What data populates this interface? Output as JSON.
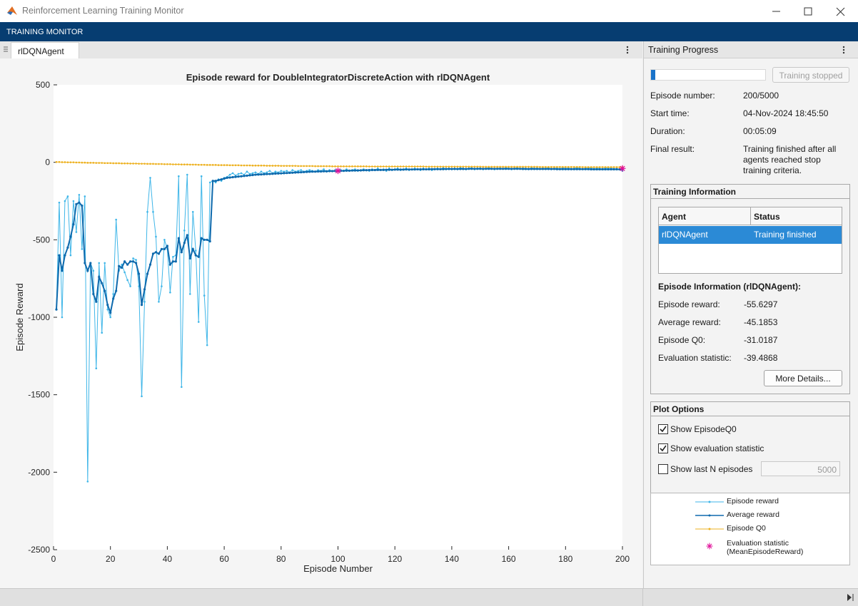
{
  "window": {
    "title": "Reinforcement Learning Training Monitor",
    "toolbar_title": "TRAINING MONITOR",
    "tab": "rlDQNAgent"
  },
  "progress": {
    "title": "Training Progress",
    "progress_bar": {
      "value": 200,
      "max": 5000
    },
    "button": "Training stopped",
    "fields": [
      {
        "label": "Episode number:",
        "value": "200/5000"
      },
      {
        "label": "Start time:",
        "value": "04-Nov-2024 18:45:50"
      },
      {
        "label": "Duration:",
        "value": "00:05:09"
      },
      {
        "label": "Final result:",
        "value": "Training finished after all agents reached stop training criteria."
      }
    ]
  },
  "training_info": {
    "title": "Training Information",
    "table": {
      "header": [
        "Agent",
        "Status"
      ],
      "rows": [
        [
          "rlDQNAgent",
          "Training finished"
        ]
      ]
    },
    "episode_info_title": "Episode Information (rlDQNAgent):",
    "fields": [
      {
        "label": "Episode reward:",
        "value": "-55.6297"
      },
      {
        "label": "Average reward:",
        "value": "-45.1853"
      },
      {
        "label": "Episode Q0:",
        "value": "-31.0187"
      },
      {
        "label": "Evaluation statistic:",
        "value": "-39.4868"
      }
    ],
    "button": "More Details..."
  },
  "plot_options": {
    "title": "Plot Options",
    "options": [
      {
        "label": "Show EpisodeQ0",
        "checked": true
      },
      {
        "label": "Show evaluation statistic",
        "checked": true
      },
      {
        "label": "Show last N episodes",
        "checked": false
      }
    ],
    "last_n_value": "5000"
  },
  "chart_data": {
    "type": "line",
    "title": "Episode reward for DoubleIntegratorDiscreteAction with rlDQNAgent",
    "x_label": "Episode Number",
    "y_label": "Episode Reward",
    "xlim": [
      0,
      200
    ],
    "xticks": [
      0,
      20,
      40,
      60,
      80,
      100,
      120,
      140,
      160,
      180,
      200
    ],
    "ylim": [
      -2500,
      500
    ],
    "yticks": [
      500,
      0,
      -500,
      -1000,
      -1500,
      -2000,
      -2500
    ],
    "grid": false,
    "x": [
      1,
      2,
      3,
      4,
      5,
      6,
      7,
      8,
      9,
      10,
      11,
      12,
      13,
      14,
      15,
      16,
      17,
      18,
      19,
      20,
      21,
      22,
      23,
      24,
      25,
      26,
      27,
      28,
      29,
      30,
      31,
      32,
      33,
      34,
      35,
      36,
      37,
      38,
      39,
      40,
      41,
      42,
      43,
      44,
      45,
      46,
      47,
      48,
      49,
      50,
      51,
      52,
      53,
      54,
      55,
      56,
      57,
      58,
      59,
      60,
      61,
      62,
      63,
      64,
      65,
      66,
      67,
      68,
      69,
      70,
      71,
      72,
      73,
      74,
      75,
      76,
      77,
      78,
      79,
      80,
      81,
      82,
      83,
      84,
      85,
      86,
      87,
      88,
      89,
      90,
      91,
      92,
      93,
      94,
      95,
      96,
      97,
      98,
      99,
      100,
      101,
      102,
      103,
      104,
      105,
      106,
      107,
      108,
      109,
      110,
      111,
      112,
      113,
      114,
      115,
      116,
      117,
      118,
      119,
      120,
      121,
      122,
      123,
      124,
      125,
      126,
      127,
      128,
      129,
      130,
      131,
      132,
      133,
      134,
      135,
      136,
      137,
      138,
      139,
      140,
      141,
      142,
      143,
      144,
      145,
      146,
      147,
      148,
      149,
      150,
      151,
      152,
      153,
      154,
      155,
      156,
      157,
      158,
      159,
      160,
      161,
      162,
      163,
      164,
      165,
      166,
      167,
      168,
      169,
      170,
      171,
      172,
      173,
      174,
      175,
      176,
      177,
      178,
      179,
      180,
      181,
      182,
      183,
      184,
      185,
      186,
      187,
      188,
      189,
      190,
      191,
      192,
      193,
      194,
      195,
      196,
      197,
      198,
      199,
      200
    ],
    "series": [
      {
        "name": "Episode reward",
        "color": "#3fb6e8",
        "marker": "dot",
        "values": [
          -950,
          -260,
          -1000,
          -250,
          -220,
          -600,
          -250,
          -450,
          -210,
          -560,
          -220,
          -2060,
          -650,
          -700,
          -1330,
          -650,
          -1100,
          -650,
          -950,
          -1000,
          -850,
          -370,
          -700,
          -660,
          -710,
          -760,
          -800,
          -620,
          -630,
          -800,
          -1510,
          -900,
          -320,
          -100,
          -320,
          -480,
          -900,
          -800,
          -500,
          -560,
          -840,
          -610,
          -600,
          -90,
          -1450,
          -440,
          -80,
          -850,
          -320,
          -570,
          -1030,
          -90,
          -860,
          -1180,
          -130,
          -120,
          -130,
          -110,
          -120,
          -100,
          -95,
          -80,
          -70,
          -85,
          -75,
          -70,
          -80,
          -60,
          -75,
          -70,
          -65,
          -75,
          -60,
          -70,
          -65,
          -55,
          -70,
          -60,
          -65,
          -55,
          -60,
          -55,
          -65,
          -50,
          -60,
          -55,
          -50,
          -60,
          -55,
          -50,
          -55,
          -60,
          -50,
          -55,
          -45,
          -60,
          -50,
          -55,
          -50,
          -56,
          -50,
          -55,
          -45,
          -55,
          -50,
          -45,
          -55,
          -50,
          -45,
          -50,
          -55,
          -45,
          -50,
          -40,
          -50,
          -45,
          -55,
          -40,
          -50,
          -45,
          -40,
          -50,
          -45,
          -40,
          -50,
          -45,
          -40,
          -45,
          -50,
          -40,
          -45,
          -40,
          -50,
          -45,
          -40,
          -45,
          -35,
          -45,
          -40,
          -45,
          -40,
          -45,
          -35,
          -40,
          -45,
          -40,
          -35,
          -45,
          -40,
          -38,
          -45,
          -40,
          -35,
          -40,
          -45,
          -40,
          -38,
          -42,
          -35,
          -40,
          -45,
          -40,
          -35,
          -42,
          -38,
          -40,
          -45,
          -35,
          -40,
          -38,
          -42,
          -38,
          -40,
          -35,
          -45,
          -40,
          -38,
          -42,
          -36,
          -40,
          -38,
          -42,
          -40,
          -35,
          -40,
          -44,
          -38,
          -40,
          -36,
          -42,
          -38,
          -40,
          -42,
          -36,
          -40,
          -38,
          -42,
          -40,
          -45,
          -55.6297
        ]
      },
      {
        "name": "Average reward",
        "color": "#0e6aad",
        "marker": "dot",
        "values": [
          -950,
          -600,
          -700,
          -600,
          -550,
          -480,
          -400,
          -270,
          -260,
          -280,
          -650,
          -700,
          -650,
          -850,
          -900,
          -740,
          -780,
          -830,
          -920,
          -970,
          -880,
          -830,
          -670,
          -680,
          -640,
          -660,
          -640,
          -640,
          -650,
          -720,
          -920,
          -820,
          -720,
          -660,
          -590,
          -580,
          -590,
          -560,
          -560,
          -540,
          -660,
          -640,
          -640,
          -490,
          -580,
          -520,
          -470,
          -620,
          -560,
          -600,
          -610,
          -490,
          -500,
          -500,
          -510,
          -120,
          -120,
          -115,
          -110,
          -105,
          -100,
          -98,
          -96,
          -94,
          -92,
          -90,
          -88,
          -86,
          -84,
          -82,
          -80,
          -79,
          -78,
          -77,
          -76,
          -75,
          -74,
          -73,
          -72,
          -71,
          -70,
          -69,
          -68,
          -67,
          -66,
          -65,
          -64,
          -63,
          -62,
          -61,
          -60,
          -60,
          -59,
          -59,
          -58,
          -58,
          -57,
          -57,
          -56,
          -56,
          -55,
          -55,
          -54,
          -54,
          -53,
          -53,
          -52,
          -52,
          -51,
          -51,
          -50,
          -50,
          -50,
          -49,
          -49,
          -49,
          -48,
          -48,
          -48,
          -47,
          -47,
          -47,
          -47,
          -46,
          -46,
          -46,
          -46,
          -45,
          -45,
          -45,
          -45,
          -45,
          -44,
          -44,
          -44,
          -44,
          -44,
          -43,
          -43,
          -43,
          -43,
          -43,
          -43,
          -43,
          -43,
          -42,
          -42,
          -42,
          -42,
          -42,
          -42,
          -42,
          -42,
          -42,
          -42,
          -42,
          -42,
          -42,
          -42,
          -42,
          -42,
          -42,
          -42,
          -42,
          -43,
          -43,
          -43,
          -43,
          -43,
          -43,
          -43,
          -43,
          -43,
          -43,
          -43,
          -43,
          -44,
          -44,
          -44,
          -44,
          -44,
          -44,
          -44,
          -44,
          -44,
          -44,
          -44,
          -44,
          -45,
          -45,
          -45,
          -45,
          -45,
          -45,
          -45,
          -45,
          -45,
          -45,
          -45,
          -45.1853
        ]
      },
      {
        "name": "Episode Q0",
        "color": "#edb120",
        "marker": "dot",
        "values": [
          2,
          2,
          1,
          1,
          0,
          0,
          0,
          -1,
          -1,
          -2,
          -2,
          -3,
          -3,
          -3,
          -4,
          -4,
          -4,
          -5,
          -5,
          -5,
          -6,
          -6,
          -6,
          -7,
          -7,
          -7,
          -8,
          -8,
          -8,
          -9,
          -9,
          -9,
          -10,
          -10,
          -10,
          -11,
          -11,
          -11,
          -12,
          -12,
          -12,
          -13,
          -13,
          -13,
          -14,
          -14,
          -14,
          -15,
          -15,
          -15,
          -16,
          -16,
          -16,
          -17,
          -17,
          -17,
          -17,
          -18,
          -18,
          -18,
          -18,
          -19,
          -19,
          -19,
          -19,
          -20,
          -20,
          -20,
          -20,
          -21,
          -21,
          -21,
          -21,
          -21,
          -22,
          -22,
          -22,
          -22,
          -22,
          -23,
          -23,
          -23,
          -23,
          -23,
          -23,
          -24,
          -24,
          -24,
          -24,
          -24,
          -24,
          -25,
          -25,
          -25,
          -25,
          -25,
          -25,
          -26,
          -26,
          -26,
          -26,
          -26,
          -26,
          -26,
          -26,
          -26,
          -26,
          -26,
          -26,
          -26,
          -27,
          -27,
          -27,
          -27,
          -27,
          -27,
          -27,
          -27,
          -27,
          -27,
          -27,
          -27,
          -27,
          -27,
          -27,
          -27,
          -27,
          -27,
          -27,
          -27,
          -28,
          -28,
          -28,
          -28,
          -28,
          -28,
          -28,
          -28,
          -28,
          -28,
          -28,
          -28,
          -28,
          -28,
          -28,
          -28,
          -28,
          -28,
          -28,
          -28,
          -29,
          -29,
          -29,
          -29,
          -29,
          -29,
          -29,
          -29,
          -29,
          -29,
          -29,
          -29,
          -29,
          -29,
          -29,
          -29,
          -29,
          -29,
          -29,
          -29,
          -30,
          -30,
          -30,
          -30,
          -30,
          -30,
          -30,
          -30,
          -30,
          -30,
          -30,
          -30,
          -30,
          -30,
          -30,
          -31,
          -31,
          -31,
          -31,
          -31,
          -31,
          -31,
          -31,
          -31,
          -31,
          -31,
          -31,
          -31,
          -31,
          -31.0187
        ]
      },
      {
        "name": "Evaluation statistic\n(MeanEpisodeReward)",
        "color": "#e0109a",
        "marker": "star",
        "x": [
          100,
          200
        ],
        "values": [
          -55,
          -39.4868
        ]
      }
    ]
  }
}
